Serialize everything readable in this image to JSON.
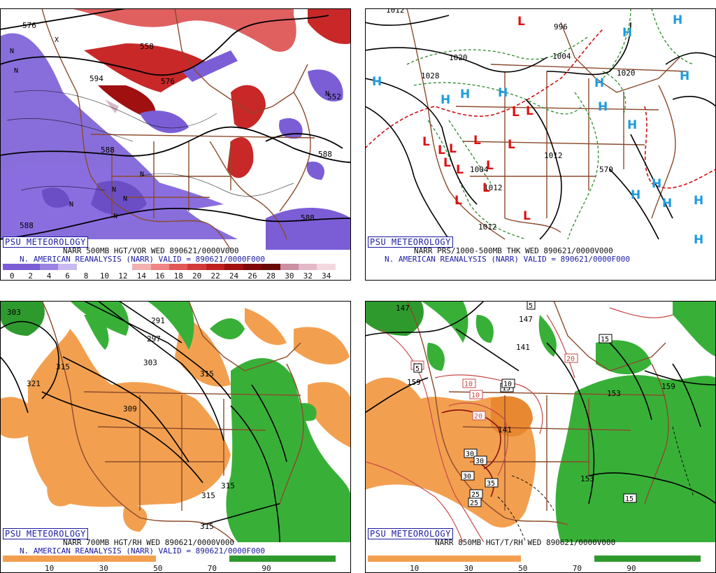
{
  "colors": {
    "bg": "#ffffff",
    "border": "#000000",
    "brand": "#1a1aa0",
    "borders_map": "#8b4a2b",
    "vort_neg": "#7b5ed6",
    "vort_pos": "#c82828",
    "rh_dry": "#f2a050",
    "rh_wet": "#38b038",
    "high": "#1e9be0",
    "low": "#e01010"
  },
  "panels": [
    {
      "id": "tl",
      "brand": "PSU METEOROLOGY",
      "line1": "NARR 500MB HGT/VOR WED 890621/0000V000",
      "line2": "N. AMERICAN REANALYSIS (NARR) VALID = 890621/0000F000",
      "contour_labels": [
        "576",
        "558",
        "594",
        "576",
        "588",
        "588",
        "588",
        "588",
        "552"
      ],
      "colorbar_ticks": [
        "0",
        "2",
        "4",
        "6",
        "8",
        "10",
        "12",
        "14",
        "16",
        "18",
        "20",
        "22",
        "24",
        "26",
        "28",
        "30",
        "32",
        "34"
      ],
      "colorbar_colors": [
        "#7b5ed6",
        "#7b5ed6",
        "#9a82e0",
        "#c8baf0",
        "#ffffff",
        "#ffffff",
        "#ffffff",
        "#f2b0b0",
        "#ee8484",
        "#e25858",
        "#d23a3a",
        "#c02020",
        "#a01010",
        "#800808",
        "#6a0808",
        "#c890a0",
        "#e4b8c8",
        "#f4d8e0"
      ]
    },
    {
      "id": "tr",
      "brand": "PSU METEOROLOGY",
      "line1": "NARR PRS/1000-500MB THK WED 890621/0000V000",
      "line2": "N. AMERICAN REANALYSIS (NARR) VALID = 890621/0000F000",
      "contour_labels": [
        "1012",
        "996",
        "1004",
        "1020",
        "1020",
        "1028",
        "1012",
        "1012",
        "1004",
        "1012",
        "570"
      ],
      "highs": [
        "H",
        "H",
        "H",
        "H",
        "H",
        "H",
        "H",
        "H",
        "H",
        "H",
        "H",
        "H",
        "H",
        "H",
        "H",
        "H"
      ],
      "lows": [
        "L",
        "L",
        "L",
        "L",
        "L",
        "L",
        "L",
        "L",
        "L",
        "L",
        "L",
        "L",
        "L",
        "L",
        "L",
        "L"
      ]
    },
    {
      "id": "bl",
      "brand": "PSU METEOROLOGY",
      "line1": "NARR 700MB HGT/RH WED 890621/0000V000",
      "line2": "N. AMERICAN REANALYSIS (NARR) VALID = 890621/0000F000",
      "contour_labels": [
        "303",
        "321",
        "315",
        "291",
        "297",
        "303",
        "309",
        "315",
        "315",
        "315",
        "315"
      ],
      "colorbar_ticks": [
        "10",
        "30",
        "50",
        "70",
        "90"
      ]
    },
    {
      "id": "br",
      "brand": "PSU METEOROLOGY",
      "line1": "NARR 850MB HGT/T/RH WED 890621/0000V000",
      "line2": "",
      "contour_labels": [
        "147",
        "141",
        "153",
        "159",
        "141",
        "153",
        "159",
        "147"
      ],
      "temp_boxes": [
        "5",
        "10",
        "10",
        "15",
        "5",
        "10",
        "15",
        "20",
        "10",
        "20",
        "25",
        "30",
        "30",
        "30",
        "35",
        "15",
        "25"
      ],
      "colorbar_ticks": [
        "10",
        "30",
        "50",
        "70",
        "90"
      ]
    }
  ]
}
